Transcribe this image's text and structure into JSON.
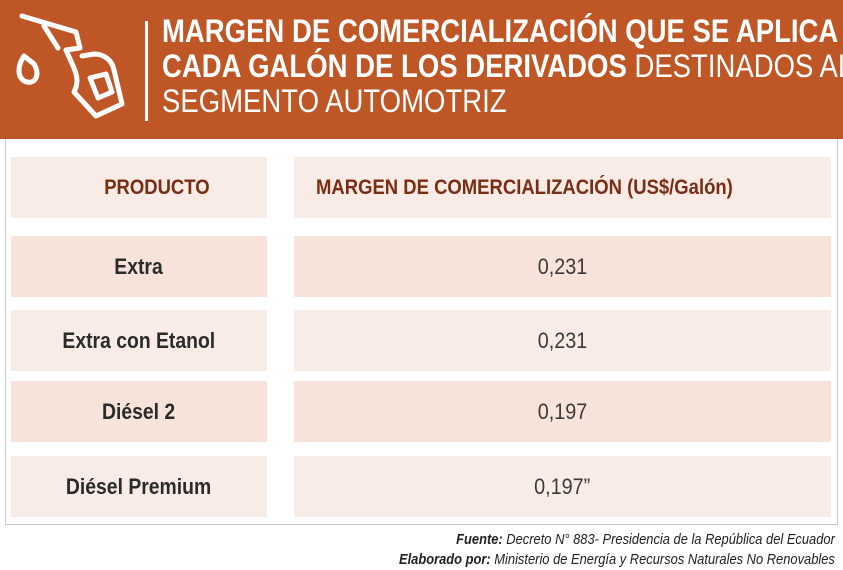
{
  "banner": {
    "title_bold_1": "MARGEN DE COMERCIALIZACIÓN QUE SE APLICA A",
    "title_bold_2": "CADA GALÓN DE LOS DERIVADOS",
    "title_normal_2": " DESTINADOS AL",
    "title_normal_3": "SEGMENTO AUTOMOTRIZ",
    "icon": "fuel-nozzle-icon",
    "background_color": "#bf5626"
  },
  "table": {
    "headers": {
      "product": "PRODUCTO",
      "margin": "MARGEN DE COMERCIALIZACIÓN (US$/Galón)"
    },
    "rows": [
      {
        "product": "Extra",
        "margin": "0,231"
      },
      {
        "product": "Extra con Etanol",
        "margin": "0,231"
      },
      {
        "product": "Diésel 2",
        "margin": "0,197"
      },
      {
        "product": "Diésel Premium",
        "margin": "0,197”"
      }
    ]
  },
  "footer": {
    "source_label": "Fuente:",
    "source_text": " Decreto N° 883- Presidencia de la República del Ecuador",
    "author_label": "Elaborado por:",
    "author_text": " Ministerio de Energía y Recursos Naturales No Renovables"
  }
}
